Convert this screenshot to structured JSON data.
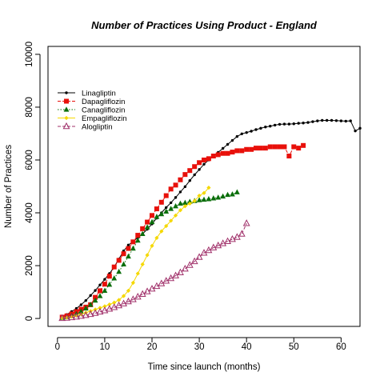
{
  "chart_data": {
    "type": "line",
    "title": "Number of Practices Using Product - England",
    "xlabel": "Time since launch (months)",
    "ylabel": "Number of Practices",
    "xlim": [
      -2,
      64
    ],
    "ylim": [
      -300,
      10300
    ],
    "x_ticks": [
      0,
      10,
      20,
      30,
      40,
      50,
      60
    ],
    "y_ticks": [
      0,
      2000,
      4000,
      6000,
      8000,
      10000
    ],
    "x_tick_labels": [
      "0",
      "10",
      "20",
      "30",
      "40",
      "50",
      "60"
    ],
    "y_tick_labels": [
      "0",
      "2000",
      "4000",
      "6000",
      "8000",
      "10000"
    ],
    "grid": false,
    "legend_position": "top-left",
    "series": [
      {
        "name": "Linagliptin",
        "color": "#000000",
        "marker": "dot",
        "line_style": "solid",
        "x": [
          1,
          2,
          3,
          4,
          5,
          6,
          7,
          8,
          9,
          10,
          11,
          12,
          13,
          14,
          15,
          16,
          17,
          18,
          19,
          20,
          21,
          22,
          23,
          24,
          25,
          26,
          27,
          28,
          29,
          30,
          31,
          32,
          33,
          34,
          35,
          36,
          37,
          38,
          39,
          40,
          41,
          42,
          43,
          44,
          45,
          46,
          47,
          48,
          49,
          50,
          51,
          52,
          53,
          54,
          55,
          56,
          57,
          58,
          59,
          60,
          61,
          62,
          63,
          64
        ],
        "values": [
          80,
          150,
          260,
          380,
          520,
          680,
          870,
          1060,
          1270,
          1480,
          1700,
          1950,
          2250,
          2560,
          2780,
          2920,
          3060,
          3200,
          3380,
          3580,
          3800,
          4000,
          4200,
          4380,
          4580,
          4790,
          4990,
          5220,
          5440,
          5640,
          5840,
          6000,
          6150,
          6290,
          6440,
          6590,
          6740,
          6890,
          6990,
          7040,
          7090,
          7150,
          7200,
          7250,
          7280,
          7320,
          7350,
          7360,
          7360,
          7370,
          7390,
          7400,
          7420,
          7450,
          7480,
          7500,
          7500,
          7500,
          7490,
          7480,
          7470,
          7480,
          7100,
          7200
        ]
      },
      {
        "name": "Dapagliflozin",
        "color": "#e8100a",
        "marker": "square",
        "line_style": "dashed",
        "x": [
          1,
          2,
          3,
          4,
          5,
          6,
          7,
          8,
          9,
          10,
          11,
          12,
          13,
          14,
          15,
          16,
          17,
          18,
          19,
          20,
          21,
          22,
          23,
          24,
          25,
          26,
          27,
          28,
          29,
          30,
          31,
          32,
          33,
          34,
          35,
          36,
          37,
          38,
          39,
          40,
          41,
          42,
          43,
          44,
          45,
          46,
          47,
          48,
          49,
          50,
          51,
          52
        ],
        "values": [
          50,
          100,
          170,
          260,
          350,
          430,
          520,
          800,
          1050,
          1300,
          1600,
          1950,
          2200,
          2450,
          2650,
          2900,
          3150,
          3400,
          3650,
          3900,
          4150,
          4400,
          4650,
          4900,
          5050,
          5250,
          5450,
          5600,
          5750,
          5900,
          6000,
          6050,
          6150,
          6200,
          6250,
          6250,
          6300,
          6350,
          6350,
          6400,
          6400,
          6450,
          6450,
          6450,
          6500,
          6500,
          6500,
          6500,
          6150,
          6500,
          6450,
          6550
        ]
      },
      {
        "name": "Canagliflozin",
        "color": "#0a6e0a",
        "marker": "triangle",
        "line_style": "dotted",
        "x": [
          1,
          2,
          3,
          4,
          5,
          6,
          7,
          8,
          9,
          10,
          11,
          12,
          13,
          14,
          15,
          16,
          17,
          18,
          19,
          20,
          21,
          22,
          23,
          24,
          25,
          26,
          27,
          28,
          29,
          30,
          31,
          32,
          33,
          34,
          35,
          36,
          37,
          38
        ],
        "values": [
          30,
          60,
          100,
          160,
          260,
          380,
          520,
          680,
          850,
          1050,
          1280,
          1520,
          1770,
          2050,
          2350,
          2650,
          2950,
          3200,
          3450,
          3650,
          3850,
          3950,
          4050,
          4150,
          4250,
          4350,
          4380,
          4420,
          4450,
          4480,
          4500,
          4520,
          4550,
          4580,
          4620,
          4680,
          4700,
          4780
        ]
      },
      {
        "name": "Empagliflozin",
        "color": "#f5d800",
        "marker": "diamond",
        "line_style": "solid",
        "x": [
          1,
          2,
          3,
          4,
          5,
          6,
          7,
          8,
          9,
          10,
          11,
          12,
          13,
          14,
          15,
          16,
          17,
          18,
          19,
          20,
          21,
          22,
          23,
          24,
          25,
          26,
          27,
          28,
          29,
          30,
          31,
          32
        ],
        "values": [
          20,
          40,
          70,
          110,
          160,
          220,
          280,
          340,
          400,
          460,
          530,
          600,
          700,
          850,
          1050,
          1350,
          1700,
          2050,
          2400,
          2750,
          3050,
          3300,
          3500,
          3700,
          3900,
          4100,
          4250,
          4350,
          4450,
          4650,
          4750,
          4950
        ]
      },
      {
        "name": "Alogliptin",
        "color": "#a0306a",
        "marker": "open-triangle",
        "line_style": "dashed",
        "x": [
          1,
          2,
          3,
          4,
          5,
          6,
          7,
          8,
          9,
          10,
          11,
          12,
          13,
          14,
          15,
          16,
          17,
          18,
          19,
          20,
          21,
          22,
          23,
          24,
          25,
          26,
          27,
          28,
          29,
          30,
          31,
          32,
          33,
          34,
          35,
          36,
          37,
          38,
          39,
          40
        ],
        "values": [
          10,
          20,
          40,
          60,
          90,
          120,
          160,
          200,
          250,
          300,
          360,
          420,
          490,
          560,
          640,
          720,
          820,
          920,
          1020,
          1120,
          1220,
          1320,
          1420,
          1520,
          1620,
          1740,
          1880,
          2020,
          2160,
          2320,
          2480,
          2580,
          2680,
          2760,
          2840,
          2920,
          3000,
          3080,
          3200,
          3600
        ]
      }
    ]
  }
}
